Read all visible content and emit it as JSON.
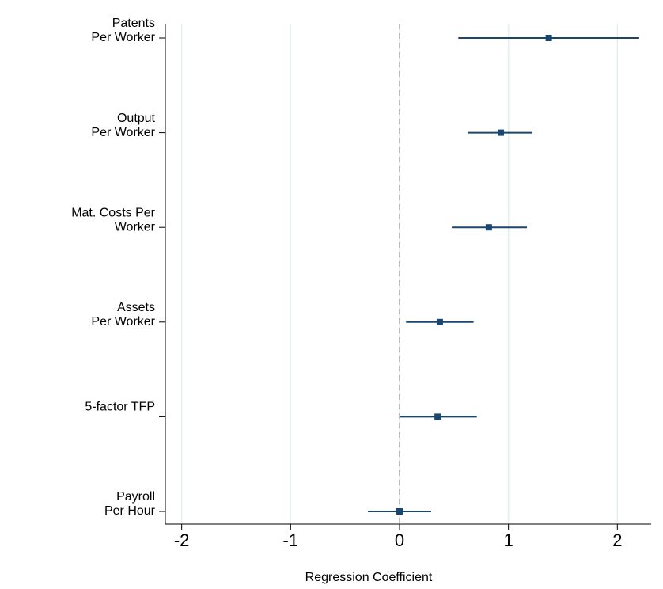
{
  "chart_data": {
    "type": "coefplot",
    "categories": [
      [
        "Patents",
        "Per Worker"
      ],
      [
        "Output",
        "Per Worker"
      ],
      [
        "Mat. Costs Per",
        "Worker"
      ],
      [
        "Assets",
        "Per Worker"
      ],
      [
        "5-factor TFP"
      ],
      [
        "Payroll",
        "Per Hour"
      ]
    ],
    "values": [
      1.37,
      0.93,
      0.82,
      0.37,
      0.35,
      0.0
    ],
    "lower": [
      0.54,
      0.63,
      0.48,
      0.06,
      0.0,
      -0.29
    ],
    "upper": [
      2.2,
      1.22,
      1.17,
      0.68,
      0.71,
      0.29
    ],
    "color": "#1a476f",
    "xlabel": "Regression Coefficient",
    "xlim": [
      -2.15,
      2.31
    ],
    "xticks": [
      -2,
      -1,
      0,
      1,
      2
    ],
    "grid": true,
    "refline": 0
  }
}
